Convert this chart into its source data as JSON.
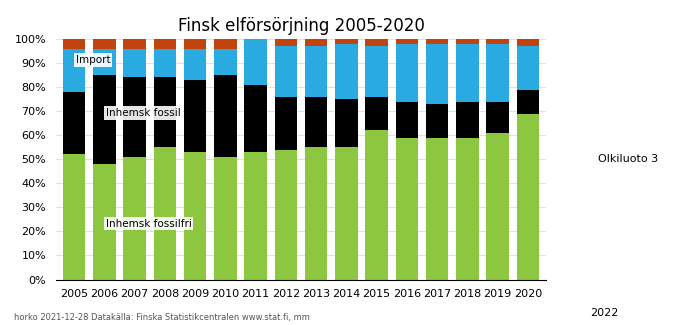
{
  "title": "Finsk elförsörjning 2005-2020",
  "years": [
    2005,
    2006,
    2007,
    2008,
    2009,
    2010,
    2011,
    2012,
    2013,
    2014,
    2015,
    2016,
    2017,
    2018,
    2019,
    2020
  ],
  "fossilfri": [
    52,
    48,
    51,
    55,
    53,
    51,
    53,
    54,
    55,
    55,
    62,
    59,
    59,
    59,
    61,
    69
  ],
  "fossil": [
    26,
    37,
    33,
    29,
    30,
    34,
    28,
    22,
    21,
    20,
    14,
    15,
    14,
    15,
    13,
    10
  ],
  "import": [
    18,
    11,
    12,
    12,
    13,
    11,
    20,
    21,
    21,
    23,
    21,
    24,
    25,
    24,
    24,
    18
  ],
  "other": [
    4,
    4,
    4,
    4,
    4,
    4,
    4,
    3,
    3,
    2,
    3,
    2,
    2,
    2,
    2,
    3
  ],
  "color_fossilfri": "#8DC63F",
  "color_fossil": "#000000",
  "color_import": "#29ABE2",
  "color_other": "#C1440E",
  "color_olkiluoto": "#FF0080",
  "label_fossilfri": "Inhemsk fossilfri",
  "label_fossil": "Inhemsk fossil",
  "label_import": "Import",
  "label_olkiluoto": "Olkiluoto 3",
  "footer_left": "horko 2021-12-28",
  "footer_right": "Datakälla: Finska Statistikcentralen www.stat.fi, mm",
  "background_color": "#FFFFFF"
}
